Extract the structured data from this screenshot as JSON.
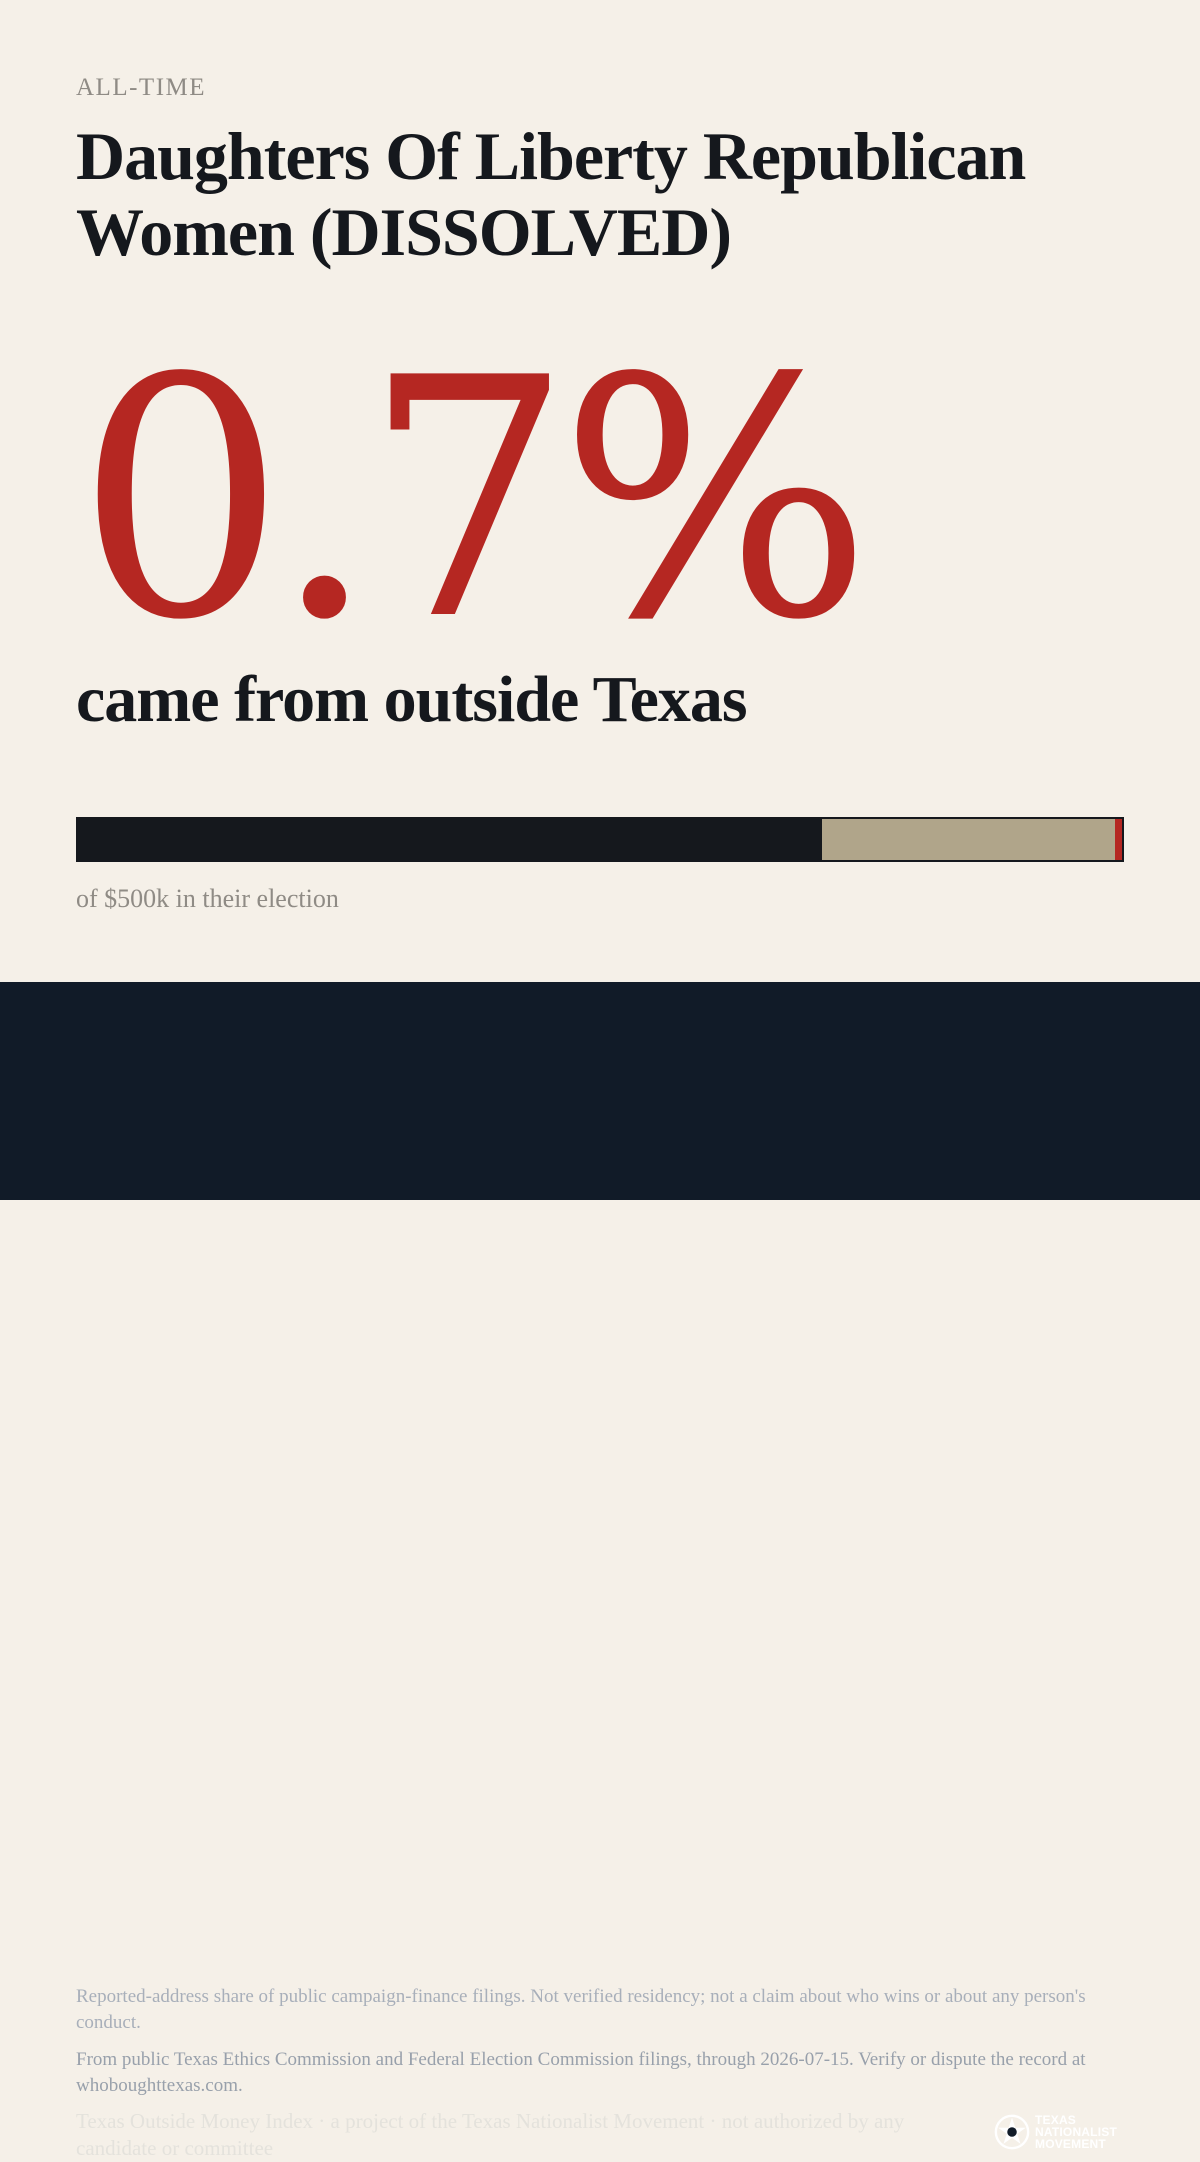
{
  "header": {
    "eyebrow": "ALL-TIME",
    "title": "Daughters Of Liberty Republican Women (DISSOLVED)"
  },
  "headline": {
    "percent": "0.7%",
    "subline": "came from outside Texas"
  },
  "bar": {
    "segments": [
      {
        "name": "in-texas",
        "fraction": 0.7131,
        "color": "#15181d"
      },
      {
        "name": "other",
        "fraction": 0.2806,
        "color": "#b0a58a"
      },
      {
        "name": "outside-texas",
        "fraction": 0.0063,
        "color": "#b52722"
      }
    ],
    "caption": "of $500k in their election"
  },
  "footer": {
    "disclaimer": "Reported-address share of public campaign-finance filings. Not verified residency; not a claim about who wins or about any person's conduct.",
    "source": "From public Texas Ethics Commission and Federal Election Commission filings, through 2026-07-15. Verify or dispute the record at whoboughttexas.com.",
    "attribution": "Texas Outside Money Index · a project of the Texas Nationalist Movement · not authorized by any candidate or committee",
    "logo": {
      "icon": "star-seal-icon",
      "line1": "TEXAS",
      "line2": "NATIONALIST",
      "line3": "MOVEMENT"
    }
  }
}
